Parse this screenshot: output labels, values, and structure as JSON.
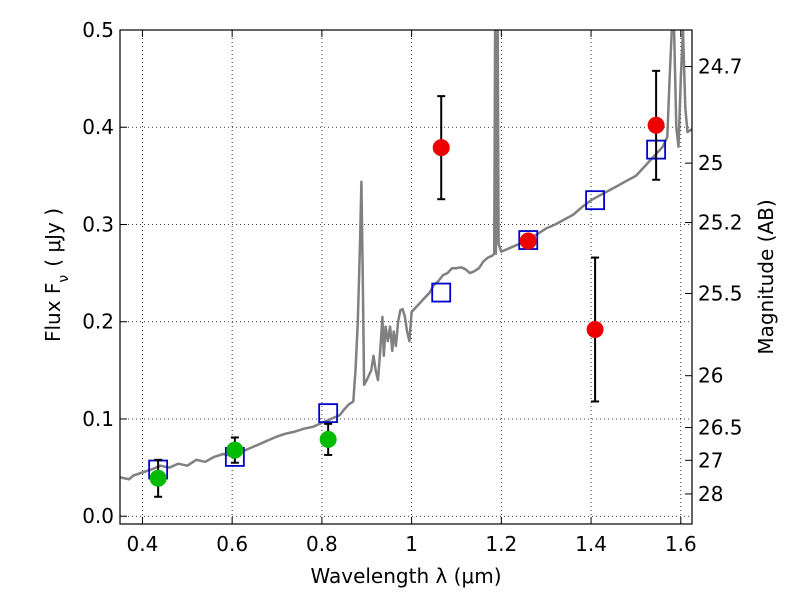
{
  "chart_data": {
    "type": "scatter",
    "xlabel": "Wavelength  λ (μm)",
    "ylabel": "Flux  F",
    "ylabel_sub": "ν",
    "ylabel_unit": "( μJy )",
    "y2label": "Magnitude (AB)",
    "xlim": [
      0.35,
      1.625
    ],
    "ylim": [
      -0.008,
      0.5
    ],
    "grid": true,
    "x_ticks": [
      0.4,
      0.6,
      0.8,
      1.0,
      1.2,
      1.4,
      1.6
    ],
    "x_tick_labels": [
      "0.4",
      "0.6",
      "0.8",
      "1",
      "1.2",
      "1.4",
      "1.6"
    ],
    "y_ticks": [
      0.0,
      0.1,
      0.2,
      0.3,
      0.4,
      0.5
    ],
    "y_tick_labels": [
      "0.0",
      "0.1",
      "0.2",
      "0.3",
      "0.4",
      "0.5"
    ],
    "y2_tick_labels": [
      {
        "label": "24.7",
        "flux": 0.4624
      },
      {
        "label": "25",
        "flux": 0.3631
      },
      {
        "label": "25.2",
        "flux": 0.302
      },
      {
        "label": "25.5",
        "flux": 0.2291
      },
      {
        "label": "26",
        "flux": 0.1445
      },
      {
        "label": "26.5",
        "flux": 0.0912
      },
      {
        "label": "27",
        "flux": 0.0575
      },
      {
        "label": "28",
        "flux": 0.0229
      }
    ],
    "colors": {
      "model": "#808080",
      "optical": "#00bb00",
      "infrared": "#ee0000",
      "model_photometry": "#0000cc",
      "error_bar": "#000000",
      "grid": "#000000"
    },
    "series": [
      {
        "points": [
          {
            "x": 0.435,
            "y": 0.039,
            "err": 0.019
          },
          {
            "x": 0.606,
            "y": 0.068,
            "err": 0.013
          },
          {
            "x": 0.814,
            "y": 0.079,
            "err": 0.016
          }
        ]
      },
      {
        "points": [
          {
            "x": 1.066,
            "y": 0.379,
            "err": 0.053
          },
          {
            "x": 1.26,
            "y": 0.283,
            "err": 0.0
          },
          {
            "x": 1.409,
            "y": 0.192,
            "err": 0.074
          },
          {
            "x": 1.545,
            "y": 0.402,
            "err": 0.056
          }
        ]
      },
      {
        "points": [
          {
            "x": 0.435,
            "y": 0.048
          },
          {
            "x": 0.606,
            "y": 0.061
          },
          {
            "x": 0.814,
            "y": 0.106
          },
          {
            "x": 1.066,
            "y": 0.23
          },
          {
            "x": 1.26,
            "y": 0.284
          },
          {
            "x": 1.409,
            "y": 0.325
          },
          {
            "x": 1.545,
            "y": 0.377
          }
        ]
      },
      {
        "type": "line",
        "points": [
          [
            0.35,
            0.04
          ],
          [
            0.37,
            0.038
          ],
          [
            0.38,
            0.042
          ],
          [
            0.4,
            0.045
          ],
          [
            0.42,
            0.048
          ],
          [
            0.44,
            0.052
          ],
          [
            0.46,
            0.05
          ],
          [
            0.48,
            0.054
          ],
          [
            0.5,
            0.052
          ],
          [
            0.52,
            0.058
          ],
          [
            0.54,
            0.056
          ],
          [
            0.56,
            0.061
          ],
          [
            0.58,
            0.064
          ],
          [
            0.6,
            0.062
          ],
          [
            0.62,
            0.066
          ],
          [
            0.64,
            0.07
          ],
          [
            0.66,
            0.074
          ],
          [
            0.68,
            0.078
          ],
          [
            0.7,
            0.082
          ],
          [
            0.72,
            0.085
          ],
          [
            0.74,
            0.087
          ],
          [
            0.76,
            0.09
          ],
          [
            0.78,
            0.092
          ],
          [
            0.8,
            0.096
          ],
          [
            0.82,
            0.1
          ],
          [
            0.84,
            0.104
          ],
          [
            0.85,
            0.11
          ],
          [
            0.86,
            0.115
          ],
          [
            0.87,
            0.118
          ],
          [
            0.875,
            0.15
          ],
          [
            0.88,
            0.2
          ],
          [
            0.885,
            0.28
          ],
          [
            0.888,
            0.344
          ],
          [
            0.891,
            0.25
          ],
          [
            0.894,
            0.135
          ],
          [
            0.9,
            0.14
          ],
          [
            0.91,
            0.15
          ],
          [
            0.915,
            0.165
          ],
          [
            0.92,
            0.15
          ],
          [
            0.925,
            0.14
          ],
          [
            0.93,
            0.17
          ],
          [
            0.935,
            0.205
          ],
          [
            0.938,
            0.165
          ],
          [
            0.942,
            0.195
          ],
          [
            0.947,
            0.18
          ],
          [
            0.952,
            0.195
          ],
          [
            0.957,
            0.17
          ],
          [
            0.96,
            0.19
          ],
          [
            0.965,
            0.175
          ],
          [
            0.97,
            0.2
          ],
          [
            0.975,
            0.212
          ],
          [
            0.98,
            0.213
          ],
          [
            0.985,
            0.205
          ],
          [
            0.99,
            0.19
          ],
          [
            0.995,
            0.18
          ],
          [
            1.0,
            0.21
          ],
          [
            1.01,
            0.215
          ],
          [
            1.02,
            0.22
          ],
          [
            1.03,
            0.225
          ],
          [
            1.04,
            0.23
          ],
          [
            1.05,
            0.238
          ],
          [
            1.06,
            0.242
          ],
          [
            1.07,
            0.248
          ],
          [
            1.08,
            0.25
          ],
          [
            1.09,
            0.255
          ],
          [
            1.1,
            0.255
          ],
          [
            1.11,
            0.256
          ],
          [
            1.12,
            0.254
          ],
          [
            1.13,
            0.25
          ],
          [
            1.14,
            0.252
          ],
          [
            1.15,
            0.255
          ],
          [
            1.16,
            0.262
          ],
          [
            1.17,
            0.266
          ],
          [
            1.18,
            0.268
          ],
          [
            1.184,
            0.27
          ],
          [
            1.186,
            0.5
          ],
          [
            1.188,
            0.27
          ],
          [
            1.192,
            0.5
          ],
          [
            1.194,
            0.28
          ],
          [
            1.2,
            0.272
          ],
          [
            1.22,
            0.276
          ],
          [
            1.24,
            0.28
          ],
          [
            1.26,
            0.285
          ],
          [
            1.28,
            0.29
          ],
          [
            1.3,
            0.296
          ],
          [
            1.32,
            0.3
          ],
          [
            1.34,
            0.305
          ],
          [
            1.36,
            0.31
          ],
          [
            1.38,
            0.318
          ],
          [
            1.4,
            0.325
          ],
          [
            1.42,
            0.33
          ],
          [
            1.44,
            0.335
          ],
          [
            1.46,
            0.34
          ],
          [
            1.48,
            0.345
          ],
          [
            1.5,
            0.35
          ],
          [
            1.52,
            0.36
          ],
          [
            1.54,
            0.37
          ],
          [
            1.56,
            0.38
          ],
          [
            1.57,
            0.39
          ],
          [
            1.575,
            0.45
          ],
          [
            1.58,
            0.5
          ],
          [
            1.585,
            0.5
          ],
          [
            1.59,
            0.4
          ],
          [
            1.595,
            0.38
          ],
          [
            1.6,
            0.45
          ],
          [
            1.605,
            0.5
          ],
          [
            1.61,
            0.42
          ],
          [
            1.615,
            0.395
          ],
          [
            1.625,
            0.398
          ]
        ]
      }
    ]
  }
}
